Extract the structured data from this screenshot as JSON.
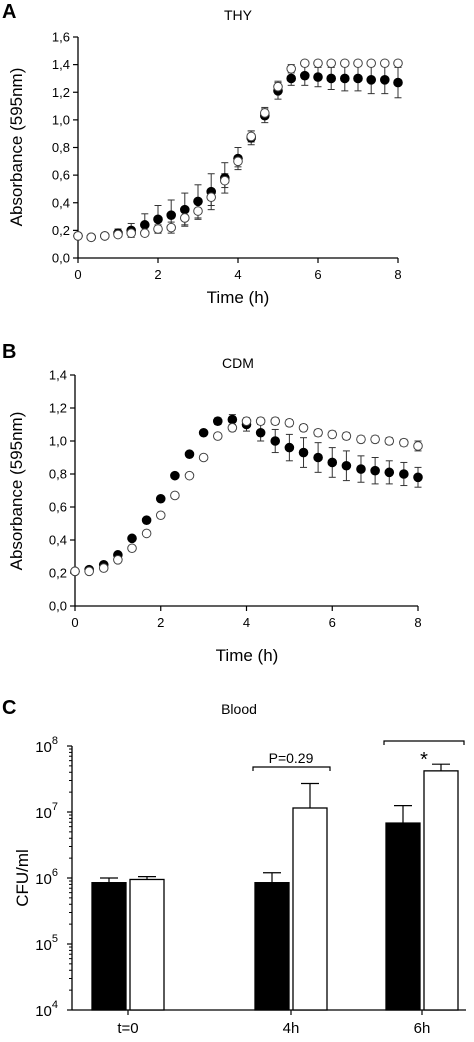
{
  "panels": [
    {
      "label": "A",
      "title": "THY",
      "type": "scatter",
      "xlabel": "Time (h)",
      "ylabel": "Absorbance (595nm)",
      "xlim": [
        0,
        8
      ],
      "ylim": [
        0,
        1.6
      ],
      "xticks": [
        "0",
        "2",
        "4",
        "6",
        "8"
      ],
      "yticks": [
        "0,0",
        "0,2",
        "0,4",
        "0,6",
        "0,8",
        "1,0",
        "1,2",
        "1,4",
        "1,6"
      ],
      "x": [
        0,
        0.33,
        0.67,
        1.0,
        1.33,
        1.67,
        2.0,
        2.33,
        2.67,
        3.0,
        3.33,
        3.67,
        4.0,
        4.33,
        4.67,
        5.0,
        5.33,
        5.67,
        6.0,
        6.33,
        6.67,
        7.0,
        7.33,
        7.67,
        8.0
      ],
      "series": [
        {
          "marker": "filled",
          "y": [
            0.16,
            0.15,
            0.16,
            0.18,
            0.2,
            0.24,
            0.28,
            0.31,
            0.35,
            0.41,
            0.48,
            0.58,
            0.72,
            0.87,
            1.03,
            1.21,
            1.3,
            1.32,
            1.31,
            1.3,
            1.3,
            1.3,
            1.29,
            1.29,
            1.27
          ],
          "err": [
            0.01,
            0.01,
            0.01,
            0.03,
            0.05,
            0.08,
            0.1,
            0.11,
            0.12,
            0.12,
            0.13,
            0.11,
            0.08,
            0.05,
            0.05,
            0.06,
            0.05,
            0.07,
            0.07,
            0.08,
            0.09,
            0.09,
            0.1,
            0.1,
            0.11
          ]
        },
        {
          "marker": "open",
          "y": [
            0.16,
            0.15,
            0.16,
            0.17,
            0.18,
            0.18,
            0.21,
            0.22,
            0.29,
            0.34,
            0.44,
            0.56,
            0.7,
            0.88,
            1.05,
            1.24,
            1.37,
            1.41,
            1.41,
            1.41,
            1.41,
            1.41,
            1.41,
            1.41,
            1.41
          ],
          "err": [
            0.01,
            0.01,
            0.01,
            0.01,
            0.02,
            0.02,
            0.03,
            0.04,
            0.05,
            0.06,
            0.06,
            0.05,
            0.04,
            0.04,
            0.04,
            0.04,
            0.03,
            0.02,
            0.02,
            0.02,
            0.02,
            0.02,
            0.02,
            0.02,
            0.02
          ]
        }
      ]
    },
    {
      "label": "B",
      "title": "CDM",
      "type": "scatter",
      "xlabel": "Time (h)",
      "ylabel": "Absorbance (595nm)",
      "xlim": [
        0,
        8
      ],
      "ylim": [
        0,
        1.4
      ],
      "xticks": [
        "0",
        "2",
        "4",
        "6",
        "8"
      ],
      "yticks": [
        "0,0",
        "0,2",
        "0,4",
        "0,6",
        "0,8",
        "1,0",
        "1,2",
        "1,4"
      ],
      "x": [
        0,
        0.33,
        0.67,
        1.0,
        1.33,
        1.67,
        2.0,
        2.33,
        2.67,
        3.0,
        3.33,
        3.67,
        4.0,
        4.33,
        4.67,
        5.0,
        5.33,
        5.67,
        6.0,
        6.33,
        6.67,
        7.0,
        7.33,
        7.67,
        8.0
      ],
      "series": [
        {
          "marker": "filled",
          "y": [
            0.21,
            0.22,
            0.25,
            0.31,
            0.41,
            0.52,
            0.65,
            0.79,
            0.92,
            1.05,
            1.12,
            1.13,
            1.1,
            1.05,
            1.0,
            0.96,
            0.93,
            0.9,
            0.87,
            0.85,
            0.83,
            0.82,
            0.81,
            0.8,
            0.78
          ],
          "err": [
            0.01,
            0.01,
            0.01,
            0.01,
            0.01,
            0.01,
            0.01,
            0.01,
            0.01,
            0.01,
            0.02,
            0.03,
            0.04,
            0.05,
            0.07,
            0.08,
            0.09,
            0.09,
            0.09,
            0.09,
            0.08,
            0.08,
            0.07,
            0.07,
            0.06
          ]
        },
        {
          "marker": "open",
          "y": [
            0.21,
            0.21,
            0.23,
            0.28,
            0.35,
            0.44,
            0.55,
            0.67,
            0.79,
            0.9,
            1.03,
            1.08,
            1.12,
            1.12,
            1.12,
            1.11,
            1.08,
            1.05,
            1.04,
            1.03,
            1.01,
            1.01,
            1.0,
            0.99,
            0.97
          ],
          "err": [
            0.01,
            0.01,
            0.01,
            0.01,
            0.01,
            0.01,
            0.01,
            0.01,
            0.01,
            0.01,
            0.01,
            0.02,
            0.02,
            0.02,
            0.02,
            0.02,
            0.02,
            0.02,
            0.02,
            0.02,
            0.02,
            0.02,
            0.02,
            0.02,
            0.03
          ]
        }
      ]
    },
    {
      "label": "C",
      "title": "Blood",
      "type": "bar",
      "ylabel": "CFU/ml",
      "yscale": "log",
      "ylim": [
        10000,
        100000000
      ],
      "ytick_values": [
        10000,
        100000,
        1000000,
        10000000,
        100000000
      ],
      "ytick_base": "10",
      "ytick_exponents": [
        "4",
        "5",
        "6",
        "7",
        "8"
      ],
      "categories": [
        "t=0",
        "4h",
        "6h"
      ],
      "series": [
        {
          "color": "#000000",
          "values": [
            850000,
            850000,
            6800000
          ],
          "err_upper": [
            1000000,
            1200000,
            12500000
          ]
        },
        {
          "color": "#ffffff",
          "values": [
            950000,
            11500000,
            42000000
          ],
          "err_upper": [
            1050000,
            27000000,
            53000000
          ]
        }
      ],
      "annotations": [
        "P=0.29",
        "*"
      ]
    }
  ]
}
